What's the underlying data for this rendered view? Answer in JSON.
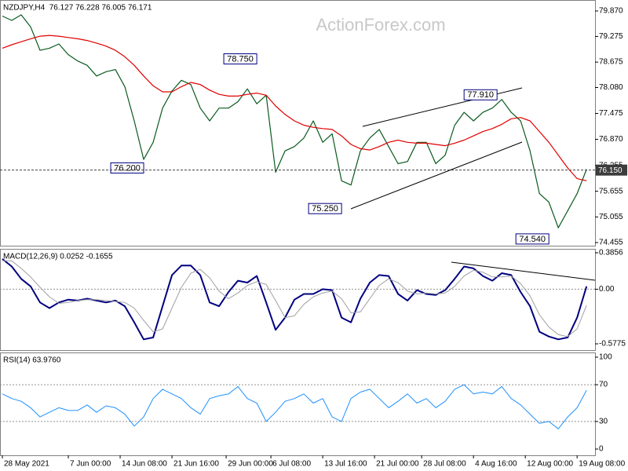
{
  "chart_data": [
    {
      "type": "line",
      "title": "NZDJPY,H4  76.127 76.228 76.005 76.171",
      "watermark": "ActionForex.com",
      "x": [
        0,
        2,
        4,
        6,
        8,
        10,
        12,
        14,
        16,
        18,
        20,
        22,
        24,
        26,
        28,
        30,
        32,
        34,
        36,
        38,
        40,
        42,
        44,
        46,
        48,
        50,
        52,
        54,
        56,
        58,
        60,
        62,
        64,
        66,
        68,
        70,
        72,
        74,
        76,
        78,
        80,
        82,
        84,
        86,
        88,
        90,
        92,
        94,
        96,
        98,
        100,
        102,
        104,
        106,
        108,
        110,
        112,
        114,
        116,
        118,
        120,
        122,
        124
      ],
      "xlim": [
        -0.5,
        125.8
      ],
      "series": [
        {
          "color": "#0a5a1e",
          "values": [
            79.75,
            79.65,
            79.78,
            79.5,
            78.95,
            79.0,
            79.1,
            78.85,
            78.7,
            78.6,
            78.35,
            78.45,
            78.5,
            78.1,
            77.3,
            76.4,
            76.8,
            77.6,
            78.0,
            78.25,
            78.15,
            77.6,
            77.3,
            77.6,
            77.6,
            77.75,
            78.05,
            77.7,
            77.9,
            76.1,
            76.6,
            76.7,
            76.9,
            77.3,
            76.8,
            77.0,
            75.9,
            75.8,
            76.6,
            76.9,
            77.1,
            76.7,
            76.3,
            76.35,
            76.8,
            76.8,
            76.3,
            76.5,
            77.2,
            77.5,
            77.3,
            77.5,
            77.6,
            77.8,
            77.5,
            77.3,
            76.6,
            75.6,
            75.4,
            74.8,
            75.2,
            75.6,
            76.17
          ]
        },
        {
          "color": "#e00000",
          "values": [
            79.0,
            79.08,
            79.15,
            79.22,
            79.28,
            79.3,
            79.28,
            79.25,
            79.22,
            79.18,
            79.12,
            79.05,
            78.95,
            78.8,
            78.6,
            78.35,
            78.12,
            77.98,
            77.98,
            78.1,
            78.2,
            78.15,
            78.02,
            77.92,
            77.88,
            77.88,
            77.92,
            77.95,
            77.9,
            77.65,
            77.45,
            77.3,
            77.2,
            77.15,
            77.12,
            77.1,
            76.95,
            76.75,
            76.65,
            76.62,
            76.7,
            76.8,
            76.85,
            76.8,
            76.78,
            76.78,
            76.75,
            76.72,
            76.78,
            76.85,
            76.95,
            77.05,
            77.12,
            77.22,
            77.35,
            77.38,
            77.3,
            77.05,
            76.8,
            76.5,
            76.2,
            75.95,
            75.9
          ]
        }
      ],
      "ylim": [
        74.382,
        80.127
      ],
      "yticks": [
        {
          "value": 79.87,
          "label": "79.870"
        },
        79.275,
        78.675,
        {
          "value": 78.08,
          "label": "78.080"
        },
        77.475,
        {
          "value": 76.87,
          "label": "76.870"
        },
        76.255,
        75.655,
        75.055,
        74.455
      ],
      "annotations": [
        {
          "label": "78.750",
          "value": 78.75,
          "x": 54
        },
        {
          "label": "76.200",
          "value": 76.2,
          "x": 30
        },
        {
          "label": "75.250",
          "value": 75.25,
          "x": 72
        },
        {
          "label": "77.910",
          "value": 77.91,
          "x": 105
        },
        {
          "label": "74.540",
          "value": 74.54,
          "x": 116
        }
      ],
      "last_price": {
        "value": 76.15,
        "label": "76.150"
      }
    },
    {
      "type": "line",
      "title": "MACD(12,26,9) 0.0252 -0.1655",
      "x": [
        0,
        2,
        4,
        6,
        8,
        10,
        12,
        14,
        16,
        18,
        20,
        22,
        24,
        26,
        28,
        30,
        32,
        34,
        36,
        38,
        40,
        42,
        44,
        46,
        48,
        50,
        52,
        54,
        56,
        58,
        60,
        62,
        64,
        66,
        68,
        70,
        72,
        74,
        76,
        78,
        80,
        82,
        84,
        86,
        88,
        90,
        92,
        94,
        96,
        98,
        100,
        102,
        104,
        106,
        108,
        110,
        112,
        114,
        116,
        118,
        120,
        122,
        124
      ],
      "xlim": [
        -0.5,
        125.8
      ],
      "series": [
        {
          "color": "#000080",
          "width": 2,
          "values": [
            0.32,
            0.24,
            0.11,
            0.03,
            -0.14,
            -0.2,
            -0.14,
            -0.11,
            -0.12,
            -0.1,
            -0.12,
            -0.14,
            -0.12,
            -0.18,
            -0.35,
            -0.53,
            -0.51,
            -0.18,
            0.15,
            0.25,
            0.25,
            0.15,
            -0.14,
            -0.18,
            -0.03,
            0.09,
            0.07,
            0.14,
            -0.14,
            -0.43,
            -0.3,
            -0.11,
            -0.05,
            -0.05,
            0.0,
            -0.01,
            -0.3,
            -0.35,
            -0.1,
            0.07,
            0.15,
            0.14,
            -0.05,
            -0.12,
            -0.01,
            -0.05,
            -0.06,
            -0.01,
            0.11,
            0.24,
            0.22,
            0.14,
            0.09,
            0.17,
            0.15,
            -0.03,
            -0.18,
            -0.45,
            -0.5,
            -0.53,
            -0.51,
            -0.3,
            0.03
          ]
        },
        {
          "color": "#a0a0a0",
          "width": 1,
          "values": [
            0.3,
            0.3,
            0.22,
            0.13,
            0.02,
            -0.08,
            -0.15,
            -0.14,
            -0.12,
            -0.11,
            -0.11,
            -0.12,
            -0.13,
            -0.14,
            -0.2,
            -0.33,
            -0.45,
            -0.42,
            -0.2,
            0.02,
            0.17,
            0.21,
            0.12,
            -0.02,
            -0.1,
            -0.04,
            0.04,
            0.08,
            0.05,
            -0.12,
            -0.3,
            -0.28,
            -0.16,
            -0.08,
            -0.04,
            -0.02,
            -0.1,
            -0.25,
            -0.24,
            -0.1,
            0.04,
            0.11,
            0.07,
            -0.02,
            -0.05,
            -0.04,
            -0.05,
            -0.04,
            0.03,
            0.14,
            0.2,
            0.18,
            0.13,
            0.13,
            0.14,
            0.06,
            -0.07,
            -0.27,
            -0.4,
            -0.48,
            -0.5,
            -0.42,
            -0.17
          ]
        }
      ],
      "ylim": [
        -0.644,
        0.427
      ],
      "yticks": [
        0.3856,
        {
          "value": 0,
          "label": "0.00"
        },
        -0.5775
      ],
      "levels": [
        0
      ]
    },
    {
      "type": "line",
      "title": "RSI(14) 63.9760",
      "x": [
        0,
        2,
        4,
        6,
        8,
        10,
        12,
        14,
        16,
        18,
        20,
        22,
        24,
        26,
        28,
        30,
        32,
        34,
        36,
        38,
        40,
        42,
        44,
        46,
        48,
        50,
        52,
        54,
        56,
        58,
        60,
        62,
        64,
        66,
        68,
        70,
        72,
        74,
        76,
        78,
        80,
        82,
        84,
        86,
        88,
        90,
        92,
        94,
        96,
        98,
        100,
        102,
        104,
        106,
        108,
        110,
        112,
        114,
        116,
        118,
        120,
        122,
        124
      ],
      "xlim": [
        -0.5,
        125.8
      ],
      "series": [
        {
          "color": "#1e90ff",
          "width": 1,
          "values": [
            60,
            55,
            52,
            45,
            35,
            40,
            45,
            42,
            42,
            48,
            40,
            47,
            45,
            38,
            25,
            35,
            55,
            65,
            60,
            55,
            45,
            38,
            55,
            58,
            60,
            68,
            55,
            50,
            30,
            40,
            52,
            55,
            60,
            50,
            55,
            35,
            30,
            55,
            62,
            65,
            55,
            45,
            52,
            60,
            50,
            55,
            45,
            52,
            65,
            70,
            60,
            62,
            60,
            68,
            55,
            48,
            38,
            28,
            30,
            22,
            35,
            45,
            64
          ]
        }
      ],
      "ylim": [
        -6.8,
        105.1
      ],
      "yticks": [
        100,
        70,
        30,
        0
      ],
      "levels": [
        70,
        30
      ],
      "xticks": [
        {
          "value": 0,
          "label": "28 May 2021"
        },
        {
          "value": 14,
          "label": "7 Jun 00:00"
        },
        {
          "value": 25,
          "label": "14 Jun 08:00"
        },
        {
          "value": 36,
          "label": "21 Jun 16:00"
        },
        {
          "value": 47.5,
          "label": "29 Jun 00:00"
        },
        {
          "value": 57,
          "label": "6 Jul 08:00"
        },
        {
          "value": 68,
          "label": "13 Jul 16:00"
        },
        {
          "value": 79,
          "label": "21 Jul 00:00"
        },
        {
          "value": 89,
          "label": "28 Jul 08:00"
        },
        {
          "value": 100,
          "label": "4 Aug 16:00"
        },
        {
          "value": 111,
          "label": "12 Aug 00:00"
        },
        {
          "value": 122,
          "label": "19 Aug 08:00"
        }
      ]
    }
  ]
}
